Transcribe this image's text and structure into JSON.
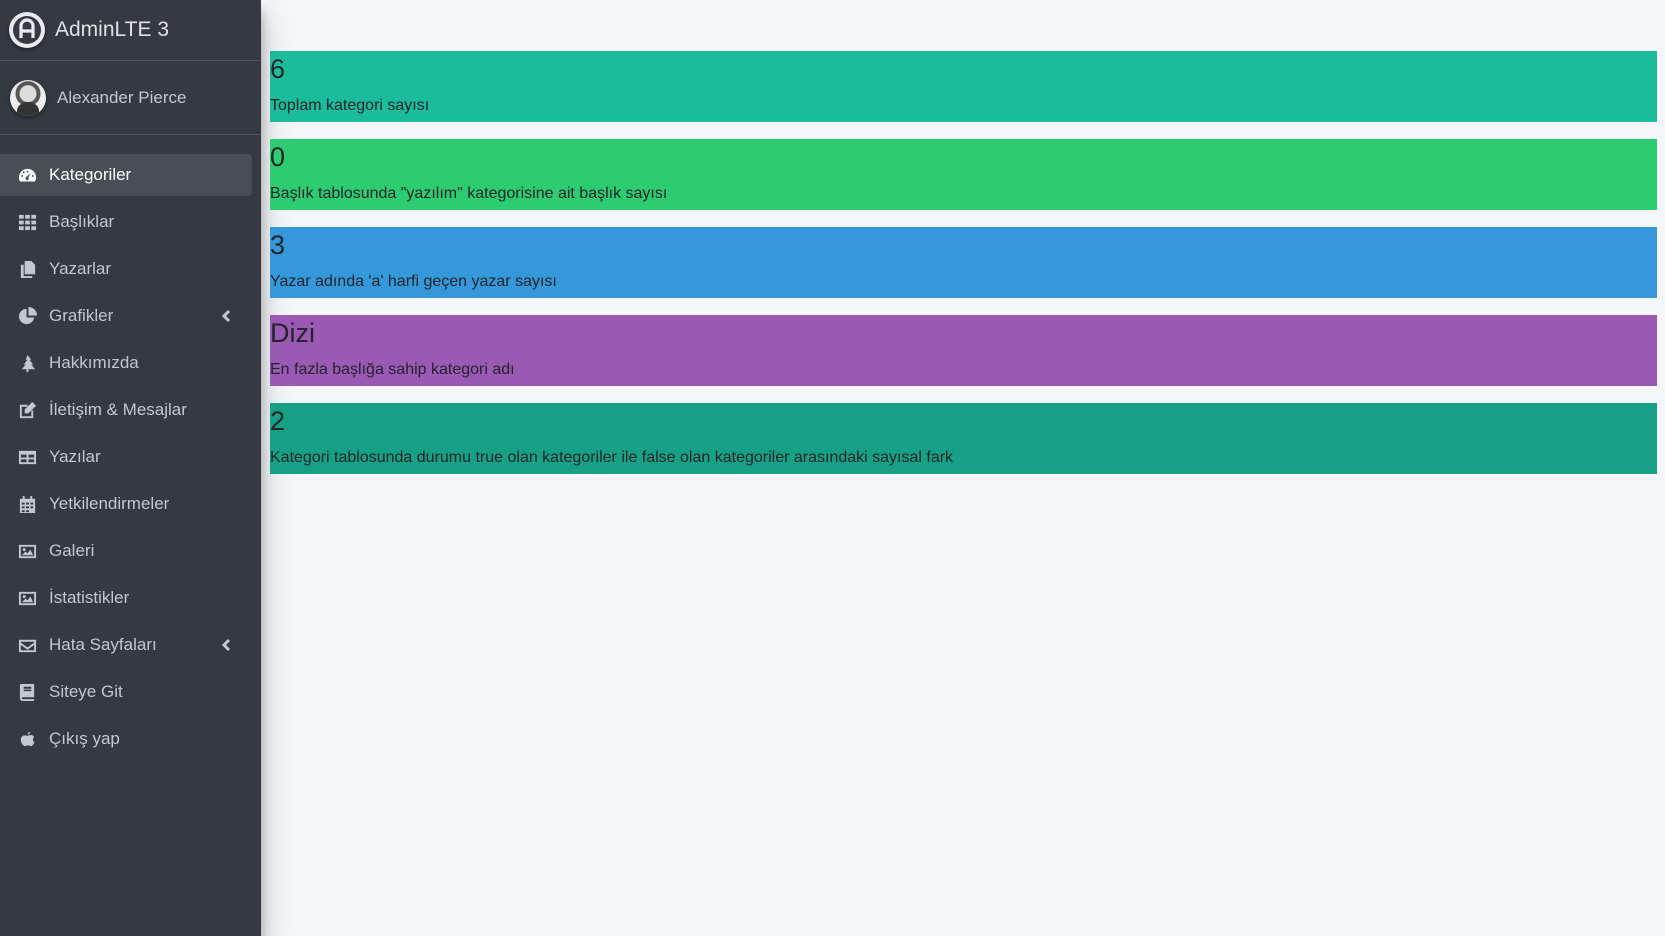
{
  "brand": {
    "title": "AdminLTE 3",
    "logo_icon": "adminlte-logo-icon"
  },
  "user": {
    "name": "Alexander Pierce"
  },
  "nav": {
    "items": [
      {
        "label": "Kategoriler",
        "icon": "tachometer-icon",
        "active": true
      },
      {
        "label": "Başlıklar",
        "icon": "grid-icon"
      },
      {
        "label": "Yazarlar",
        "icon": "copy-icon"
      },
      {
        "label": "Grafikler",
        "icon": "pie-chart-icon",
        "chevron": true
      },
      {
        "label": "Hakkımızda",
        "icon": "tree-icon"
      },
      {
        "label": "İletişim & Mesajlar",
        "icon": "edit-icon"
      },
      {
        "label": "Yazılar",
        "icon": "table-icon"
      },
      {
        "label": "Yetkilendirmeler",
        "icon": "calendar-icon"
      },
      {
        "label": "Galeri",
        "icon": "image-icon"
      },
      {
        "label": "İstatistikler",
        "icon": "image-icon"
      },
      {
        "label": "Hata Sayfaları",
        "icon": "envelope-icon",
        "chevron": true
      },
      {
        "label": "Siteye Git",
        "icon": "book-icon"
      },
      {
        "label": "Çıkış yap",
        "icon": "apple-icon"
      }
    ]
  },
  "stats": [
    {
      "value": "6",
      "label": "Toplam kategori sayısı",
      "color": "#1abc9c"
    },
    {
      "value": "0",
      "label": "Başlık tablosunda \"yazılım\" kategorisine ait başlık sayısı",
      "color": "#2ecc71"
    },
    {
      "value": "3",
      "label": "Yazar adında 'a' harfi geçen yazar sayısı",
      "color": "#3498db"
    },
    {
      "value": "Dizi",
      "label": "En fazla başlığa sahip kategori adı",
      "color": "#9b59b6"
    },
    {
      "value": "2",
      "label": "Kategori tablosunda durumu true olan kategoriler ile false olan kategoriler arasındaki sayısal fark",
      "color": "#16a085"
    }
  ]
}
